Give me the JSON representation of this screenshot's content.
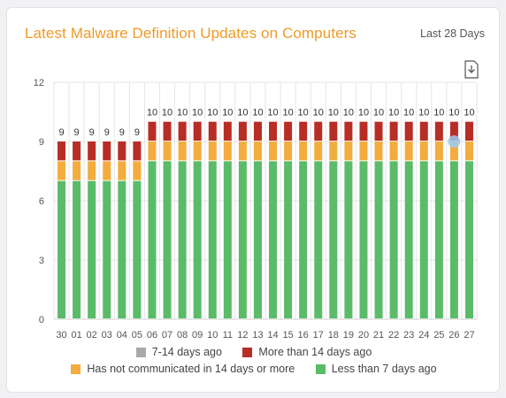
{
  "header": {
    "title": "Latest Malware Definition Updates on Computers",
    "range": "Last 28 Days"
  },
  "icons": {
    "download": "download-icon"
  },
  "colors": {
    "title": "#ef9a27",
    "grid": "#e6e6e6",
    "seven_to_fourteen": "#a9a9a9",
    "more_than_fourteen": "#b82d24",
    "not_communicated": "#f3ac3e",
    "less_than_seven": "#5abb68",
    "highlight": "#9cc9ee"
  },
  "legend": [
    {
      "key": "seven_to_fourteen",
      "label": "7-14 days ago"
    },
    {
      "key": "more_than_fourteen",
      "label": "More than 14 days ago"
    },
    {
      "key": "not_communicated",
      "label": "Has not communicated in 14 days or more"
    },
    {
      "key": "less_than_seven",
      "label": "Less than 7 days ago"
    }
  ],
  "chart_data": {
    "type": "bar",
    "stacked": true,
    "categories": [
      "30",
      "01",
      "02",
      "03",
      "04",
      "05",
      "06",
      "07",
      "08",
      "09",
      "10",
      "11",
      "12",
      "13",
      "14",
      "15",
      "16",
      "17",
      "18",
      "19",
      "20",
      "21",
      "22",
      "23",
      "24",
      "25",
      "26",
      "27"
    ],
    "yticks": [
      0,
      3,
      6,
      9,
      12
    ],
    "ylim": [
      0,
      12
    ],
    "grid": true,
    "totals": [
      9,
      9,
      9,
      9,
      9,
      9,
      10,
      10,
      10,
      10,
      10,
      10,
      10,
      10,
      10,
      10,
      10,
      10,
      10,
      10,
      10,
      10,
      10,
      10,
      10,
      10,
      10,
      10
    ],
    "series": [
      {
        "key": "less_than_seven",
        "name": "Less than 7 days ago",
        "values": [
          7,
          7,
          7,
          7,
          7,
          7,
          8,
          8,
          8,
          8,
          8,
          8,
          8,
          8,
          8,
          8,
          8,
          8,
          8,
          8,
          8,
          8,
          8,
          8,
          8,
          8,
          8,
          8
        ]
      },
      {
        "key": "not_communicated",
        "name": "Has not communicated in 14 days or more",
        "values": [
          1,
          1,
          1,
          1,
          1,
          1,
          1,
          1,
          1,
          1,
          1,
          1,
          1,
          1,
          1,
          1,
          1,
          1,
          1,
          1,
          1,
          1,
          1,
          1,
          1,
          1,
          1,
          1
        ]
      },
      {
        "key": "seven_to_fourteen",
        "name": "7-14 days ago",
        "values": [
          0,
          0,
          0,
          0,
          0,
          0,
          0,
          0,
          0,
          0,
          0,
          0,
          0,
          0,
          0,
          0,
          0,
          0,
          0,
          0,
          0,
          0,
          0,
          0,
          0,
          0,
          0,
          0
        ]
      },
      {
        "key": "more_than_fourteen",
        "name": "More than 14 days ago",
        "values": [
          1,
          1,
          1,
          1,
          1,
          1,
          1,
          1,
          1,
          1,
          1,
          1,
          1,
          1,
          1,
          1,
          1,
          1,
          1,
          1,
          1,
          1,
          1,
          1,
          1,
          1,
          1,
          1
        ]
      }
    ],
    "highlight_point": {
      "category": "26",
      "value": 9
    }
  }
}
